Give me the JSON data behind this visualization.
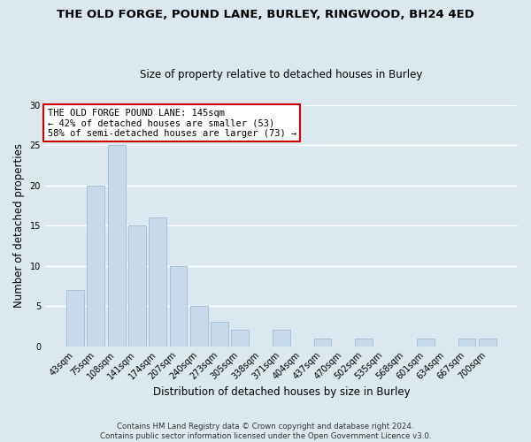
{
  "title": "THE OLD FORGE, POUND LANE, BURLEY, RINGWOOD, BH24 4ED",
  "subtitle": "Size of property relative to detached houses in Burley",
  "xlabel": "Distribution of detached houses by size in Burley",
  "ylabel": "Number of detached properties",
  "bar_labels": [
    "43sqm",
    "75sqm",
    "108sqm",
    "141sqm",
    "174sqm",
    "207sqm",
    "240sqm",
    "273sqm",
    "305sqm",
    "338sqm",
    "371sqm",
    "404sqm",
    "437sqm",
    "470sqm",
    "502sqm",
    "535sqm",
    "568sqm",
    "601sqm",
    "634sqm",
    "667sqm",
    "700sqm"
  ],
  "bar_values": [
    7,
    20,
    25,
    15,
    16,
    10,
    5,
    3,
    2,
    0,
    2,
    0,
    1,
    0,
    1,
    0,
    0,
    1,
    0,
    1,
    1
  ],
  "bar_color": "#c8daea",
  "bar_edge_color": "#a8c0d6",
  "annotation_line1": "THE OLD FORGE POUND LANE: 145sqm",
  "annotation_line2": "← 42% of detached houses are smaller (53)",
  "annotation_line3": "58% of semi-detached houses are larger (73) →",
  "annotation_box_color": "white",
  "annotation_box_edgecolor": "#cc0000",
  "ylim": [
    0,
    30
  ],
  "yticks": [
    0,
    5,
    10,
    15,
    20,
    25,
    30
  ],
  "footer_line1": "Contains HM Land Registry data © Crown copyright and database right 2024.",
  "footer_line2": "Contains public sector information licensed under the Open Government Licence v3.0.",
  "background_color": "#dce8f0",
  "grid_color": "#ffffff",
  "title_fontsize": 9.5,
  "subtitle_fontsize": 8.5
}
